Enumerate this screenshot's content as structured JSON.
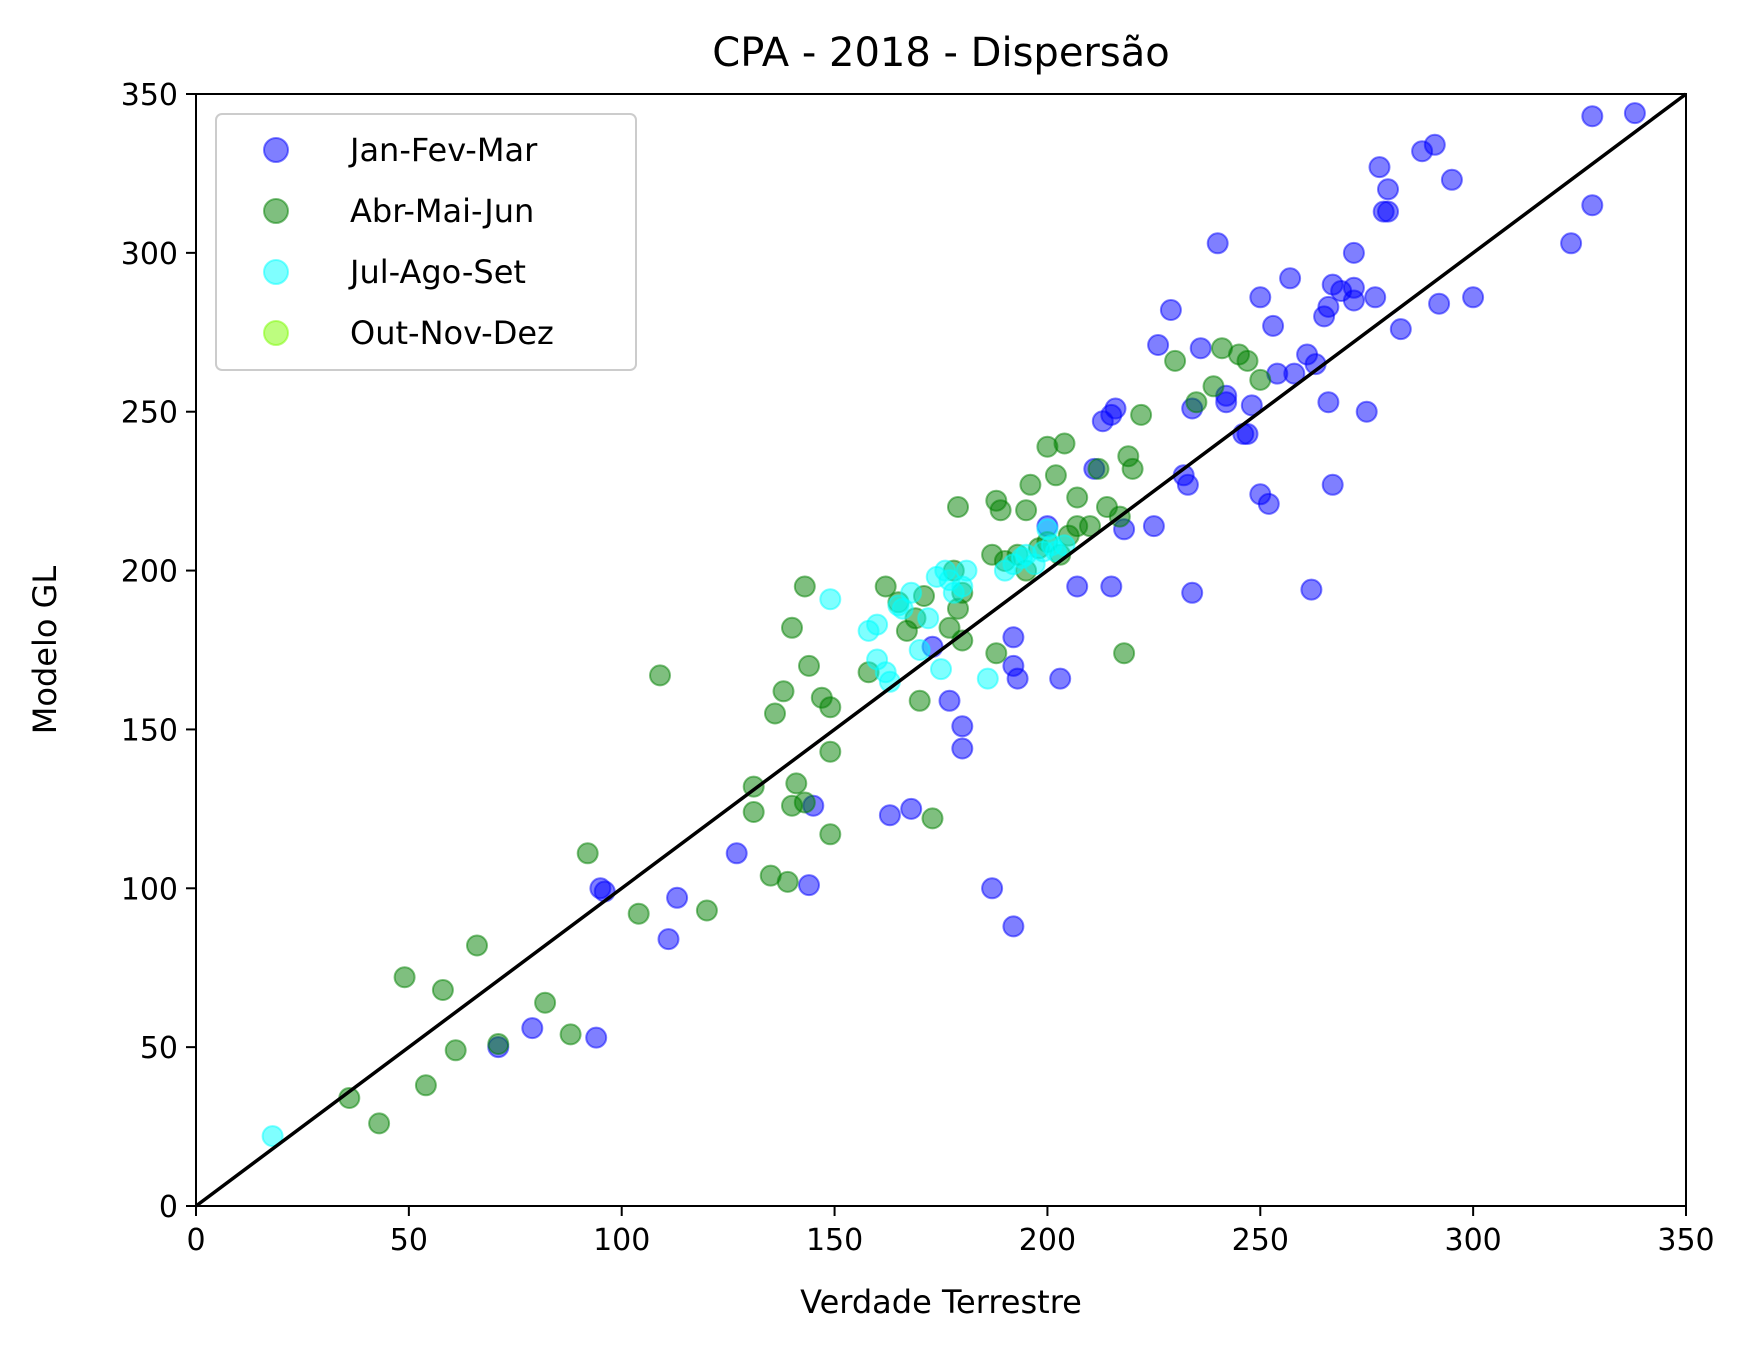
{
  "chart_data": {
    "type": "scatter",
    "title": "CPA - 2018 - Dispersão",
    "xlabel": "Verdade Terrestre",
    "ylabel": "Modelo GL",
    "xlim": [
      0,
      350
    ],
    "ylim": [
      0,
      350
    ],
    "xticks": [
      "0",
      "50",
      "100",
      "150",
      "200",
      "250",
      "300",
      "350"
    ],
    "yticks": [
      "0",
      "50",
      "100",
      "150",
      "200",
      "250",
      "300",
      "350"
    ],
    "grid": false,
    "legend_position": "top-left",
    "reference_line": {
      "from": [
        0,
        0
      ],
      "to": [
        350,
        350
      ],
      "color": "#000000"
    },
    "point_alpha": 0.5,
    "series": [
      {
        "name": "Jan-Fev-Mar",
        "color": "#0000ff",
        "points": [
          [
            338,
            344
          ],
          [
            328,
            343
          ],
          [
            291,
            334
          ],
          [
            288,
            332
          ],
          [
            278,
            327
          ],
          [
            295,
            323
          ],
          [
            280,
            320
          ],
          [
            328,
            315
          ],
          [
            279,
            313
          ],
          [
            280,
            313
          ],
          [
            323,
            303
          ],
          [
            240,
            303
          ],
          [
            272,
            300
          ],
          [
            257,
            292
          ],
          [
            267,
            290
          ],
          [
            269,
            288
          ],
          [
            272,
            289
          ],
          [
            250,
            286
          ],
          [
            277,
            286
          ],
          [
            300,
            286
          ],
          [
            272,
            285
          ],
          [
            292,
            284
          ],
          [
            266,
            283
          ],
          [
            265,
            280
          ],
          [
            229,
            282
          ],
          [
            253,
            277
          ],
          [
            283,
            276
          ],
          [
            226,
            271
          ],
          [
            236,
            270
          ],
          [
            261,
            268
          ],
          [
            263,
            265
          ],
          [
            258,
            262
          ],
          [
            254,
            262
          ],
          [
            216,
            251
          ],
          [
            215,
            249
          ],
          [
            234,
            251
          ],
          [
            248,
            252
          ],
          [
            213,
            247
          ],
          [
            242,
            255
          ],
          [
            242,
            253
          ],
          [
            266,
            253
          ],
          [
            275,
            250
          ],
          [
            246,
            243
          ],
          [
            247,
            243
          ],
          [
            211,
            232
          ],
          [
            232,
            230
          ],
          [
            233,
            227
          ],
          [
            267,
            227
          ],
          [
            250,
            224
          ],
          [
            252,
            221
          ],
          [
            225,
            214
          ],
          [
            218,
            213
          ],
          [
            200,
            214
          ],
          [
            207,
            195
          ],
          [
            215,
            195
          ],
          [
            234,
            193
          ],
          [
            262,
            194
          ],
          [
            192,
            179
          ],
          [
            192,
            170
          ],
          [
            193,
            166
          ],
          [
            203,
            166
          ],
          [
            173,
            176
          ],
          [
            177,
            159
          ],
          [
            180,
            151
          ],
          [
            180,
            144
          ],
          [
            145,
            126
          ],
          [
            168,
            125
          ],
          [
            163,
            123
          ],
          [
            127,
            111
          ],
          [
            144,
            101
          ],
          [
            187,
            100
          ],
          [
            192,
            88
          ],
          [
            95,
            100
          ],
          [
            96,
            99
          ],
          [
            113,
            97
          ],
          [
            111,
            84
          ],
          [
            79,
            56
          ],
          [
            71,
            50
          ],
          [
            94,
            53
          ]
        ]
      },
      {
        "name": "Abr-Mai-Jun",
        "color": "#008000",
        "points": [
          [
            43,
            26
          ],
          [
            36,
            34
          ],
          [
            54,
            38
          ],
          [
            61,
            49
          ],
          [
            71,
            51
          ],
          [
            88,
            54
          ],
          [
            82,
            64
          ],
          [
            58,
            68
          ],
          [
            49,
            72
          ],
          [
            66,
            82
          ],
          [
            104,
            92
          ],
          [
            120,
            93
          ],
          [
            92,
            111
          ],
          [
            139,
            102
          ],
          [
            135,
            104
          ],
          [
            149,
            117
          ],
          [
            140,
            126
          ],
          [
            143,
            127
          ],
          [
            131,
            124
          ],
          [
            131,
            132
          ],
          [
            141,
            133
          ],
          [
            149,
            143
          ],
          [
            173,
            122
          ],
          [
            170,
            159
          ],
          [
            136,
            155
          ],
          [
            138,
            162
          ],
          [
            147,
            160
          ],
          [
            149,
            157
          ],
          [
            109,
            167
          ],
          [
            144,
            170
          ],
          [
            140,
            182
          ],
          [
            143,
            195
          ],
          [
            158,
            168
          ],
          [
            162,
            195
          ],
          [
            167,
            181
          ],
          [
            169,
            185
          ],
          [
            165,
            190
          ],
          [
            171,
            192
          ],
          [
            177,
            182
          ],
          [
            179,
            188
          ],
          [
            180,
            178
          ],
          [
            180,
            193
          ],
          [
            178,
            200
          ],
          [
            188,
            174
          ],
          [
            187,
            205
          ],
          [
            190,
            203
          ],
          [
            193,
            205
          ],
          [
            195,
            200
          ],
          [
            198,
            207
          ],
          [
            200,
            209
          ],
          [
            203,
            205
          ],
          [
            205,
            211
          ],
          [
            207,
            214
          ],
          [
            210,
            214
          ],
          [
            212,
            232
          ],
          [
            217,
            217
          ],
          [
            218,
            174
          ],
          [
            219,
            236
          ],
          [
            220,
            232
          ],
          [
            214,
            220
          ],
          [
            207,
            223
          ],
          [
            202,
            230
          ],
          [
            196,
            227
          ],
          [
            188,
            222
          ],
          [
            189,
            219
          ],
          [
            200,
            239
          ],
          [
            204,
            240
          ],
          [
            195,
            219
          ],
          [
            179,
            220
          ],
          [
            222,
            249
          ],
          [
            230,
            266
          ],
          [
            235,
            253
          ],
          [
            239,
            258
          ],
          [
            241,
            270
          ],
          [
            245,
            268
          ],
          [
            247,
            266
          ],
          [
            250,
            260
          ]
        ]
      },
      {
        "name": "Jul-Ago-Set",
        "color": "#00ffff",
        "points": [
          [
            18,
            22
          ],
          [
            149,
            191
          ],
          [
            160,
            183
          ],
          [
            158,
            181
          ],
          [
            162,
            168
          ],
          [
            163,
            165
          ],
          [
            160,
            172
          ],
          [
            165,
            189
          ],
          [
            168,
            193
          ],
          [
            172,
            185
          ],
          [
            174,
            198
          ],
          [
            176,
            200
          ],
          [
            175,
            169
          ],
          [
            177,
            197
          ],
          [
            178,
            193
          ],
          [
            180,
            195
          ],
          [
            181,
            200
          ],
          [
            186,
            166
          ],
          [
            190,
            200
          ],
          [
            192,
            202
          ],
          [
            194,
            204
          ],
          [
            195,
            205
          ],
          [
            197,
            202
          ],
          [
            199,
            206
          ],
          [
            200,
            213
          ],
          [
            201,
            208
          ],
          [
            202,
            206
          ],
          [
            204,
            208
          ],
          [
            170,
            175
          ],
          [
            166,
            188
          ]
        ]
      },
      {
        "name": "Out-Nov-Dez",
        "color": "#7cfc00",
        "points": []
      }
    ]
  }
}
